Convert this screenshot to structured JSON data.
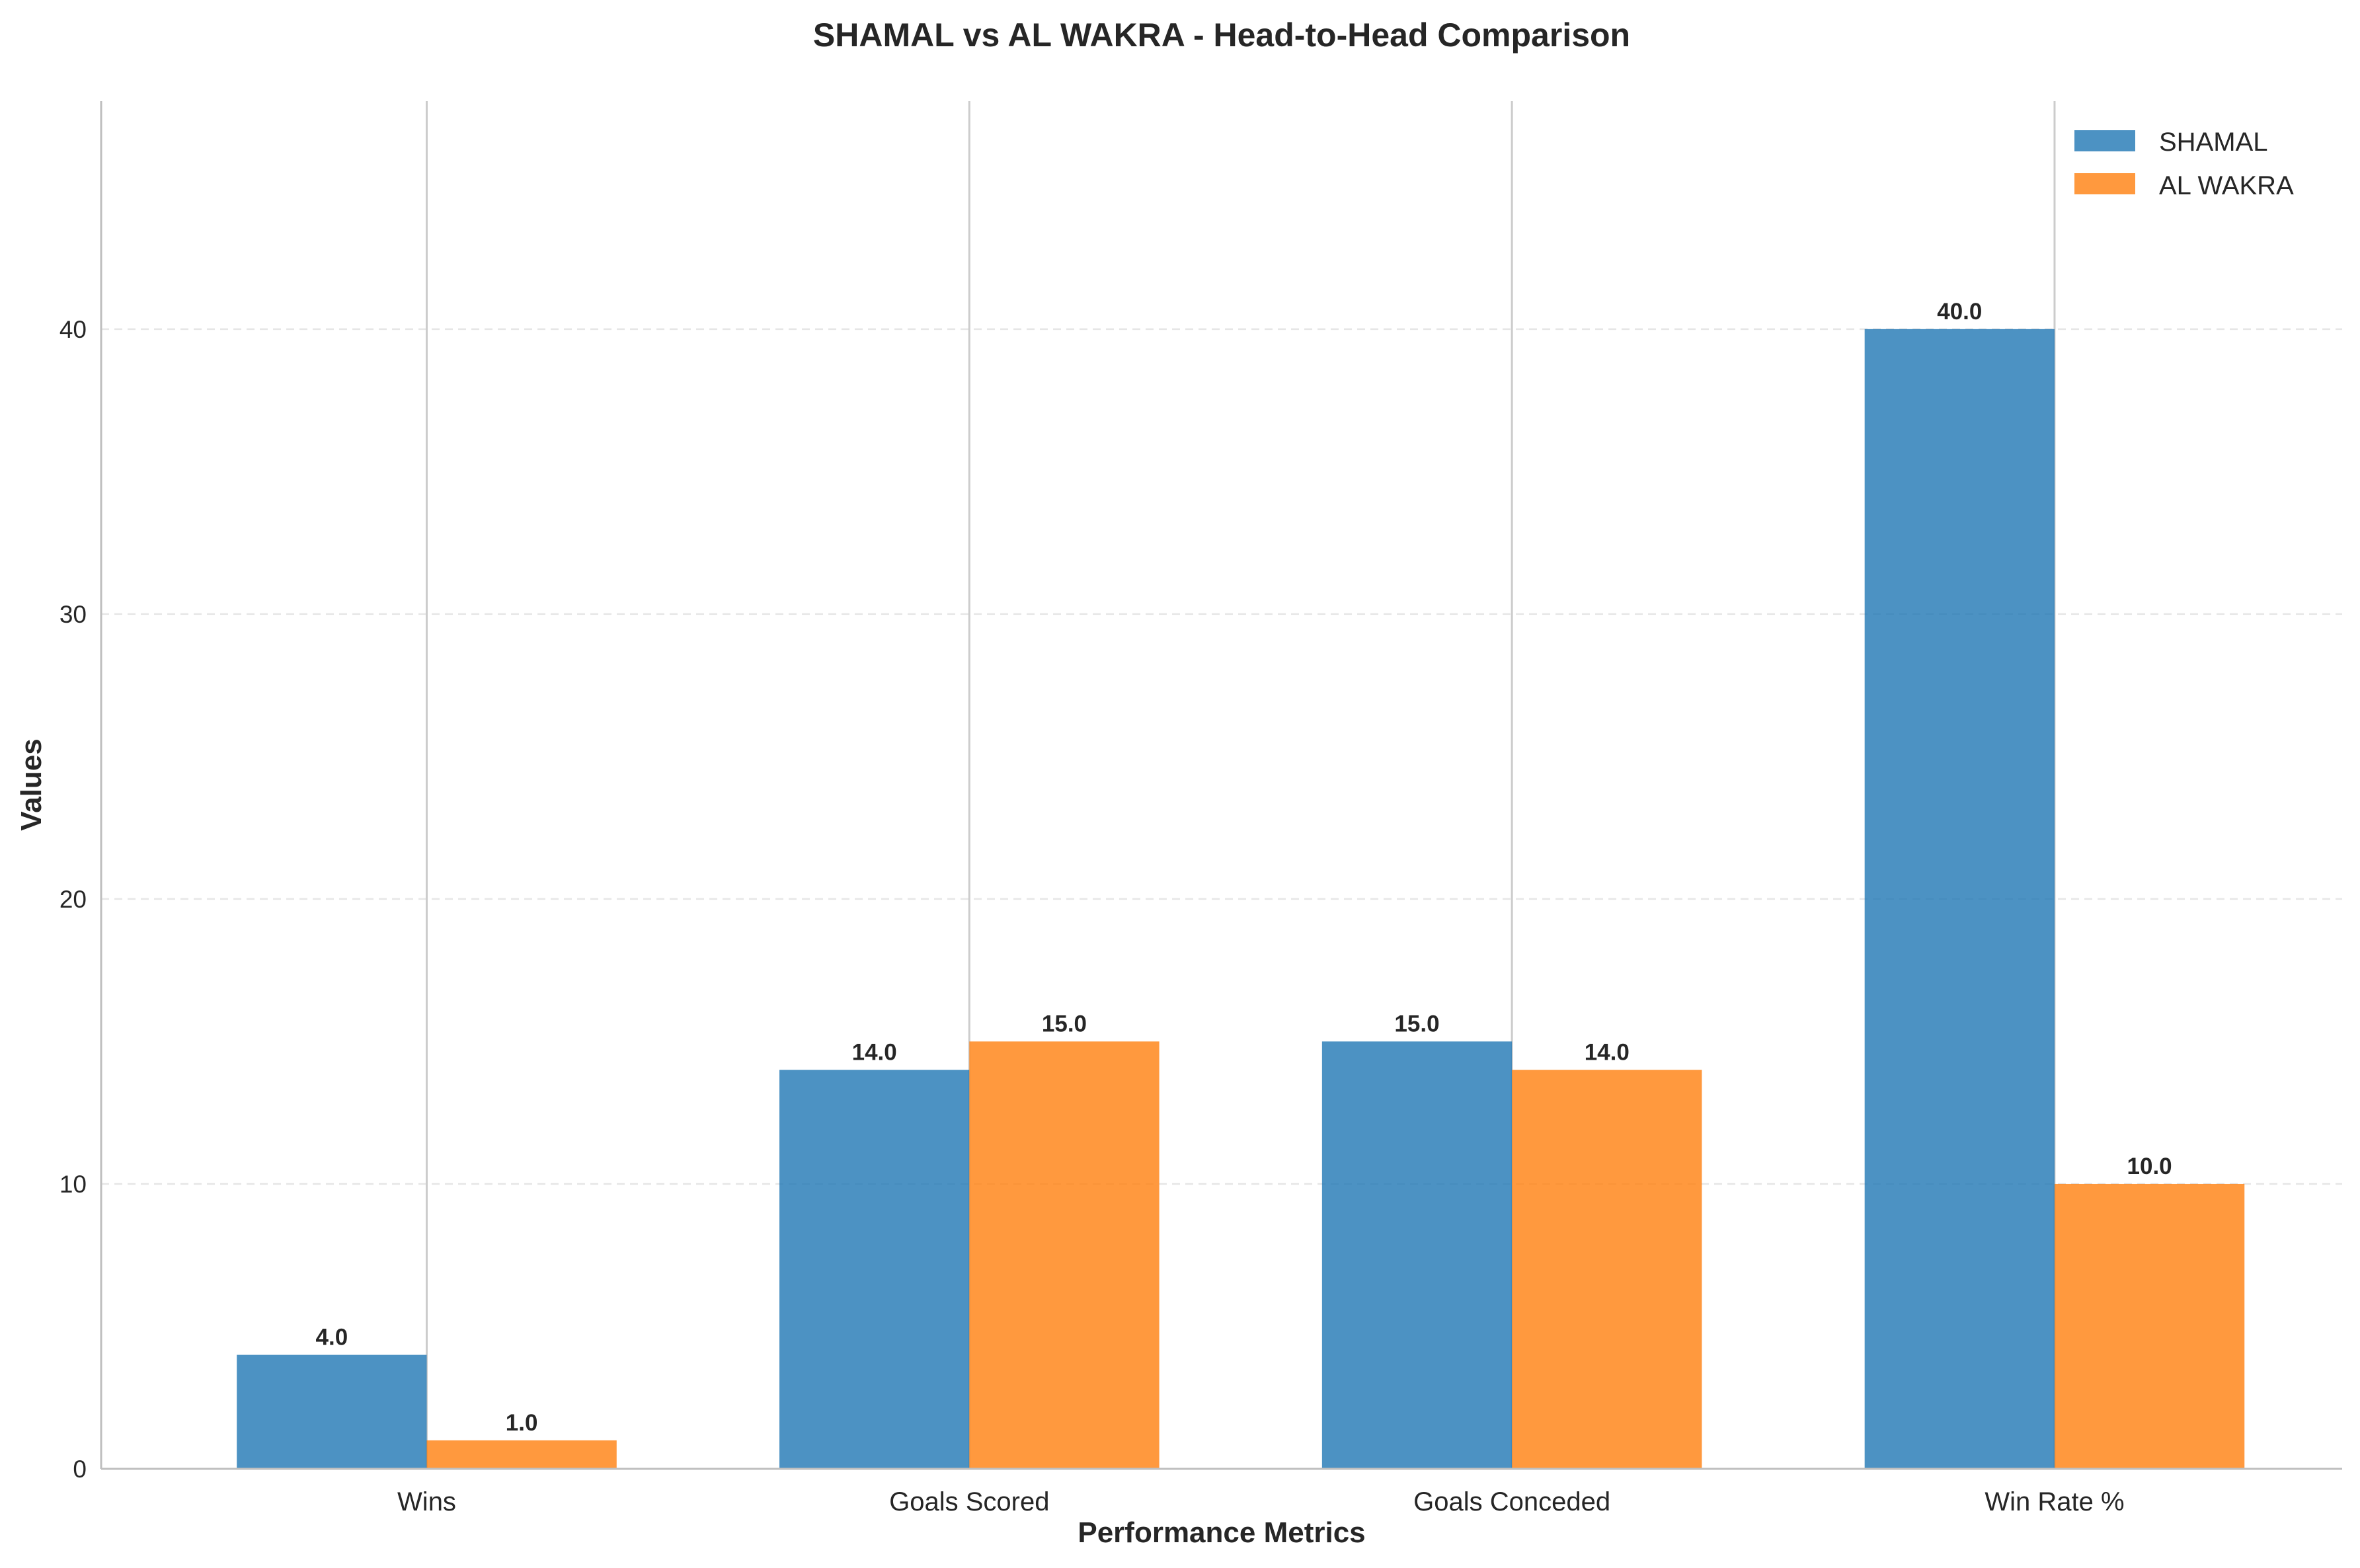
{
  "chart_data": {
    "type": "bar",
    "title": "SHAMAL vs AL WAKRA - Head-to-Head Comparison",
    "xlabel": "Performance Metrics",
    "ylabel": "Values",
    "categories": [
      "Wins",
      "Goals Scored",
      "Goals Conceded",
      "Win Rate %"
    ],
    "series": [
      {
        "name": "SHAMAL",
        "values": [
          4.0,
          14.0,
          15.0,
          40.0
        ],
        "color": "#1f77b4",
        "labels": [
          "4.0",
          "14.0",
          "15.0",
          "40.0"
        ]
      },
      {
        "name": "AL WAKRA",
        "values": [
          1.0,
          15.0,
          14.0,
          10.0
        ],
        "color": "#ff7f0e",
        "labels": [
          "1.0",
          "15.0",
          "14.0",
          "10.0"
        ]
      }
    ],
    "ylim": [
      0,
      48
    ],
    "yticks": [
      0,
      10,
      20,
      30,
      40
    ],
    "ytick_labels": [
      "0",
      "10",
      "20",
      "30",
      "40"
    ],
    "grid": "horizontal dashed (y-axis)",
    "legend_position": "top-right"
  }
}
